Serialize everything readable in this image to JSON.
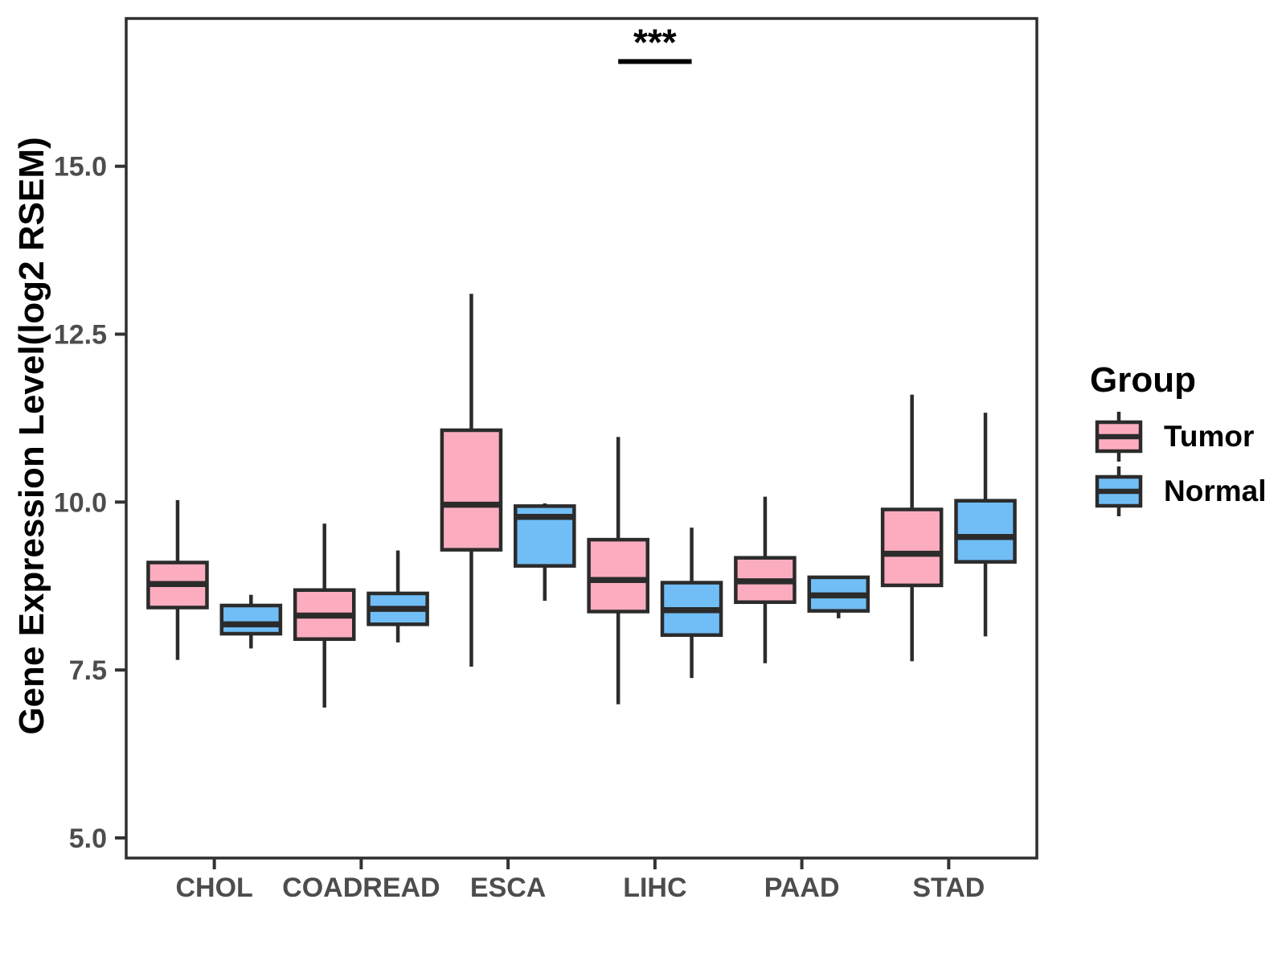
{
  "chart_data": {
    "type": "boxplot",
    "title": "",
    "y_axis": {
      "title": "Gene Expression Level(log2 RSEM)",
      "tick_labels": [
        "5.0",
        "7.5",
        "10.0",
        "12.5",
        "15.0"
      ],
      "tick_values": [
        5.0,
        7.5,
        10.0,
        12.5,
        15.0
      ],
      "range": [
        4.7,
        17.2
      ],
      "grid": false
    },
    "x_axis": {
      "title": "",
      "categories": [
        "CHOL",
        "COADREAD",
        "ESCA",
        "LIHC",
        "PAAD",
        "STAD"
      ]
    },
    "legend": {
      "title": "Group",
      "position": "right",
      "entries": [
        {
          "label": "Tumor",
          "fill": "#FBADBF"
        },
        {
          "label": "Normal",
          "fill": "#71BDF6"
        }
      ]
    },
    "series": [
      {
        "name": "Tumor",
        "fill": "#FBADBF",
        "boxes": [
          {
            "category": "CHOL",
            "whisker_low": 7.65,
            "q1": 8.43,
            "median": 8.78,
            "q3": 9.1,
            "whisker_high": 10.03
          },
          {
            "category": "COADREAD",
            "whisker_low": 6.94,
            "q1": 7.96,
            "median": 8.31,
            "q3": 8.69,
            "whisker_high": 9.68
          },
          {
            "category": "ESCA",
            "whisker_low": 7.55,
            "q1": 9.29,
            "median": 9.96,
            "q3": 11.07,
            "whisker_high": 13.1
          },
          {
            "category": "LIHC",
            "whisker_low": 6.99,
            "q1": 8.37,
            "median": 8.84,
            "q3": 9.44,
            "whisker_high": 10.97
          },
          {
            "category": "PAAD",
            "whisker_low": 7.6,
            "q1": 8.51,
            "median": 8.82,
            "q3": 9.17,
            "whisker_high": 10.08
          },
          {
            "category": "STAD",
            "whisker_low": 7.63,
            "q1": 8.76,
            "median": 9.23,
            "q3": 9.89,
            "whisker_high": 11.6
          }
        ]
      },
      {
        "name": "Normal",
        "fill": "#71BDF6",
        "boxes": [
          {
            "category": "CHOL",
            "whisker_low": 7.82,
            "q1": 8.04,
            "median": 8.18,
            "q3": 8.46,
            "whisker_high": 8.62
          },
          {
            "category": "COADREAD",
            "whisker_low": 7.91,
            "q1": 8.18,
            "median": 8.41,
            "q3": 8.64,
            "whisker_high": 9.28
          },
          {
            "category": "ESCA",
            "whisker_low": 8.53,
            "q1": 9.05,
            "median": 9.78,
            "q3": 9.94,
            "whisker_high": 9.98
          },
          {
            "category": "LIHC",
            "whisker_low": 7.38,
            "q1": 8.02,
            "median": 8.39,
            "q3": 8.8,
            "whisker_high": 9.62
          },
          {
            "category": "PAAD",
            "whisker_low": 8.27,
            "q1": 8.38,
            "median": 8.61,
            "q3": 8.88,
            "whisker_high": 8.88
          },
          {
            "category": "STAD",
            "whisker_low": 8.0,
            "q1": 9.11,
            "median": 9.48,
            "q3": 10.02,
            "whisker_high": 11.33
          }
        ]
      }
    ],
    "annotation": {
      "label": "***",
      "category": "LIHC",
      "line_y": 16.56
    },
    "colors": {
      "stroke": "#2B2B2B",
      "panel_border": "#2E2E2E",
      "tick_text": "#4D4D4D",
      "axis_text": "#000000",
      "background": "#FFFFFF"
    }
  }
}
